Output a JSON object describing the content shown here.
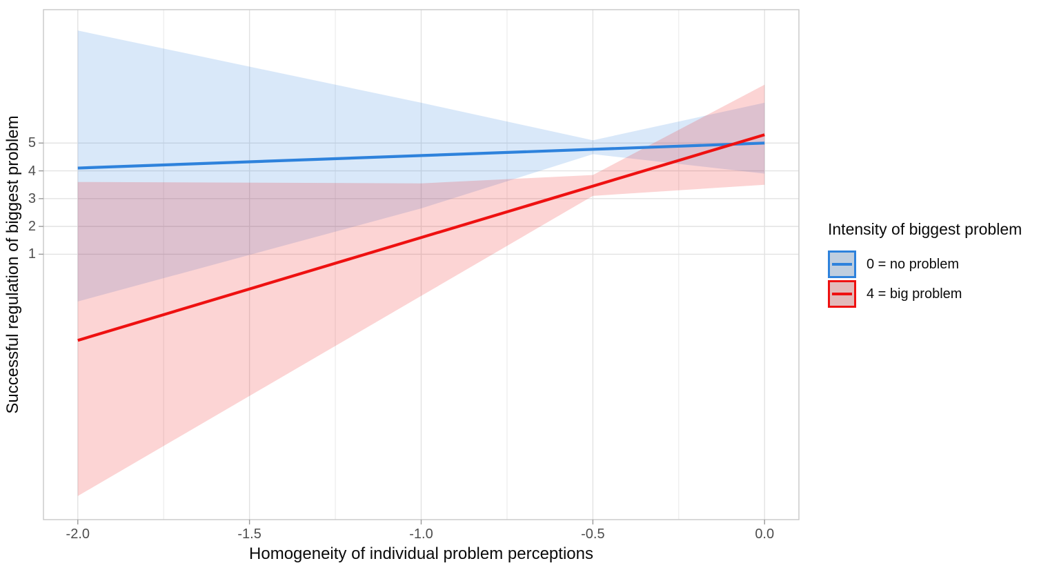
{
  "legend": {
    "title": "Intensity of biggest problem",
    "key_background": "#E0E0E0",
    "items": [
      {
        "label": "0 = no problem",
        "color": "#2E82DC",
        "fill": "rgba(46,130,220,0.18)"
      },
      {
        "label": "4 = big problem",
        "color": "#EE1111",
        "fill": "rgba(238,17,17,0.18)"
      }
    ]
  },
  "colors": {
    "grid_major": "#E2E2E2",
    "grid_minor": "#EAEAEA",
    "panel_border": "#C8C8C8",
    "tick_mark": "#999999",
    "tick_label": "#4D4D4D",
    "title_text": "#0A0A0A"
  },
  "chart_data": {
    "type": "line",
    "title": "",
    "xlabel": "Homogeneity of individual problem perceptions",
    "ylabel": "Successful regulation of biggest problem",
    "xlim": [
      -2.1,
      0.1
    ],
    "ylim": [
      -8.55,
      9.8
    ],
    "grid": "major-and-minor-x, major-y only at breaks 1-5",
    "legend_position": "right",
    "x_breaks": [
      -2.0,
      -1.5,
      -1.0,
      -0.5,
      0.0
    ],
    "x_labels": [
      "-2.0",
      "-1.5",
      "-1.0",
      "-0.5",
      "0.0"
    ],
    "x_minor_breaks": [
      -1.75,
      -1.25,
      -0.75,
      -0.25
    ],
    "y_breaks": [
      1,
      2,
      3,
      4,
      5
    ],
    "y_labels": [
      "1",
      "2",
      "3",
      "4",
      "5"
    ],
    "series": [
      {
        "name": "0 = no problem",
        "color": "#2E82DC",
        "fill": "rgba(46,130,220,0.18)",
        "line": {
          "x": [
            -2.0,
            0.0
          ],
          "y": [
            4.1,
            5.0
          ]
        },
        "ribbon": {
          "x": [
            -2.0,
            -1.0,
            -0.5,
            0.0
          ],
          "upper": [
            9.05,
            6.45,
            5.1,
            6.45
          ],
          "lower": [
            -0.7,
            2.65,
            4.6,
            3.9
          ]
        }
      },
      {
        "name": "4 = big problem",
        "color": "#EE1111",
        "fill": "rgba(238,17,17,0.18)",
        "line": {
          "x": [
            -2.0,
            0.0
          ],
          "y": [
            -2.1,
            5.3
          ]
        },
        "ribbon": {
          "x": [
            -2.0,
            -1.0,
            -0.5,
            0.0
          ],
          "upper": [
            3.6,
            3.55,
            3.85,
            7.1
          ],
          "lower": [
            -7.7,
            -0.5,
            3.1,
            3.5
          ]
        }
      }
    ]
  }
}
